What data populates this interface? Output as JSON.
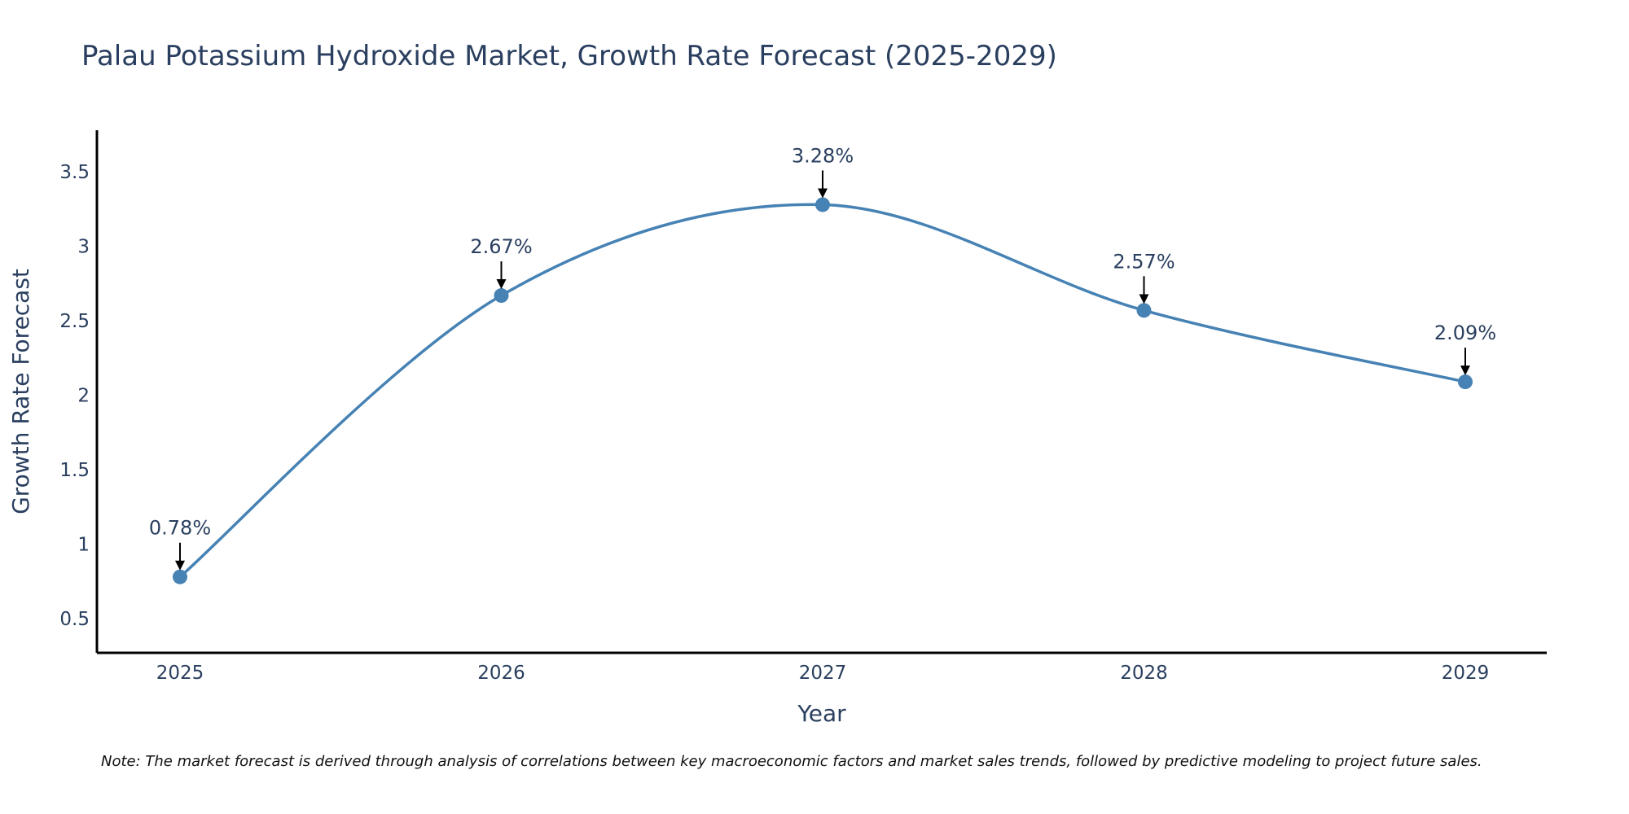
{
  "chart_data": {
    "type": "line",
    "title": "Palau Potassium Hydroxide Market, Growth Rate Forecast (2025-2029)",
    "xlabel": "Year",
    "ylabel": "Growth Rate Forecast",
    "categories": [
      "2025",
      "2026",
      "2027",
      "2028",
      "2029"
    ],
    "series": [
      {
        "name": "Growth Rate Forecast",
        "values": [
          0.78,
          2.67,
          3.28,
          2.57,
          2.09
        ],
        "labels": [
          "0.78%",
          "2.67%",
          "3.28%",
          "2.57%",
          "2.09%"
        ],
        "color": "#4682b4"
      }
    ],
    "yticks": [
      0.5,
      1,
      1.5,
      2,
      2.5,
      3,
      3.5
    ],
    "ytick_labels": [
      "0.5",
      "1",
      "1.5",
      "2",
      "2.5",
      "3",
      "3.5"
    ],
    "ylim": [
      0.27,
      3.78
    ],
    "grid": false,
    "line_shape": "spline",
    "note": "Note: The market forecast is derived through analysis of correlations between key macroeconomic factors and market sales trends, followed by predictive modeling to project future sales."
  }
}
